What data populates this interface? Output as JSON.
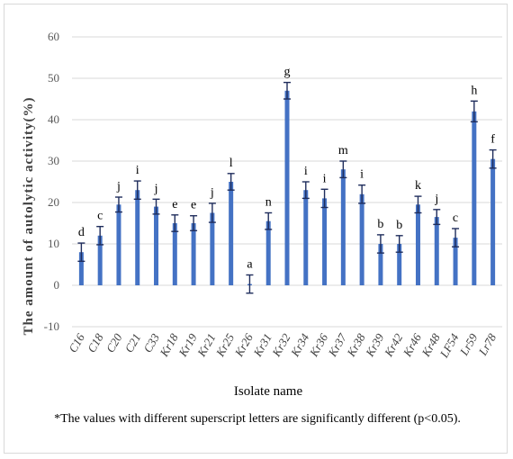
{
  "chart_data": {
    "type": "bar",
    "title": "",
    "xlabel": "Isolate name",
    "ylabel": "The amount of autolytic activity(%)",
    "footnote": "*The values with different superscript letters are significantly different (p<0.05).",
    "ylim": [
      -10,
      60
    ],
    "yticks": [
      -10,
      0,
      10,
      20,
      30,
      40,
      50,
      60
    ],
    "grid": true,
    "bar_color": "#4472c4",
    "error_color": "#1f2d5c",
    "categories": [
      "C16",
      "C18",
      "C20",
      "C21",
      "C33",
      "Kr18",
      "Kr19",
      "Kr21",
      "Kr25",
      "Kr26",
      "Kr31",
      "Kr32",
      "Kr34",
      "Kr36",
      "Kr37",
      "Kr38",
      "Kr39",
      "Kr42",
      "Kr46",
      "Kr48",
      "LF54",
      "Lr59",
      "Lr78"
    ],
    "values": [
      8,
      12,
      19.5,
      23,
      19,
      15,
      15,
      17.5,
      25,
      0.3,
      15.5,
      47,
      23,
      21,
      28,
      22,
      10,
      10,
      19.5,
      16.5,
      11.5,
      42,
      30.5
    ],
    "errors": [
      2.2,
      2.2,
      1.8,
      2.2,
      1.8,
      2,
      1.8,
      2.3,
      2,
      2.2,
      2,
      2,
      2,
      2.2,
      2,
      2.2,
      2.2,
      2,
      2,
      1.8,
      2.2,
      2.5,
      2.2
    ],
    "letters": [
      "d",
      "c",
      "j",
      "i",
      "j",
      "e",
      "e",
      "j",
      "l",
      "a",
      "n",
      "g",
      "i",
      "i",
      "m",
      "i",
      "b",
      "b",
      "k",
      "j",
      "c",
      "h",
      "f"
    ]
  }
}
